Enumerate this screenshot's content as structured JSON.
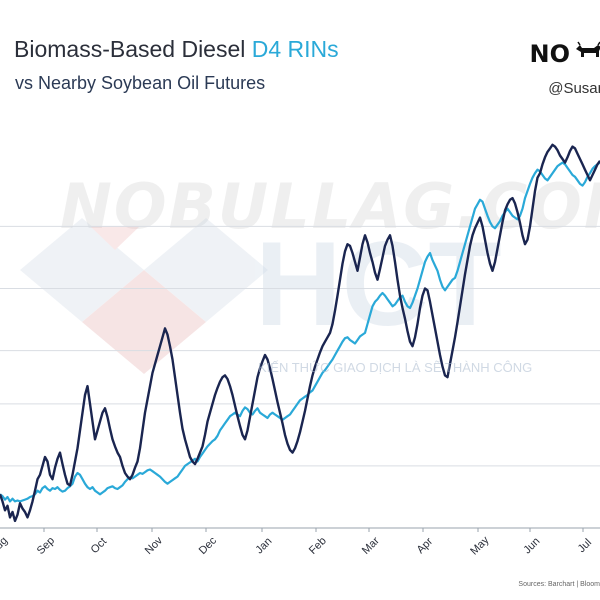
{
  "header": {
    "title_main": "Biomass-Based Diesel ",
    "title_accent": "D4 RINs",
    "subtitle": "vs Nearby Soybean Oil Futures"
  },
  "brand": {
    "logo_text": "NO",
    "handle": "@Susan"
  },
  "watermark": {
    "text": "NOBULLAG.COM",
    "logo_text": "HCT",
    "sub_text": "KIẾN THỨC GIAO DỊCH LÀ SẼ THÀNH CÔNG"
  },
  "source_text": "Sources: Barchart | Bloom",
  "colors": {
    "rins": "#2aa9d8",
    "soyoil": "#1a2550",
    "accent": "#2aa9d8",
    "grid": "#d9dde3"
  },
  "chart_data": {
    "type": "line",
    "title": "Biomass-Based Diesel D4 RINs",
    "subtitle": "vs Nearby Soybean Oil Futures",
    "x_ticks": [
      "Aug",
      "Sep",
      "Oct",
      "Nov",
      "Dec",
      "Jan",
      "Feb",
      "Mar",
      "Apr",
      "May",
      "Jun",
      "Jul"
    ],
    "grid": true,
    "series": [
      {
        "name": "D4 RINs",
        "color": "#2aa9d8",
        "values": [
          38,
          36,
          32,
          35,
          30,
          33,
          30,
          31,
          30,
          31,
          32,
          33,
          35,
          36,
          38,
          42,
          40,
          45,
          47,
          44,
          42,
          45,
          44,
          46,
          43,
          41,
          42,
          45,
          47,
          50,
          58,
          62,
          60,
          55,
          50,
          46,
          44,
          46,
          42,
          40,
          38,
          40,
          42,
          45,
          46,
          47,
          45,
          44,
          46,
          48,
          52,
          55,
          57,
          56,
          58,
          60,
          62,
          61,
          63,
          65,
          66,
          64,
          62,
          60,
          58,
          55,
          52,
          50,
          52,
          54,
          56,
          58,
          62,
          66,
          70,
          72,
          74,
          76,
          78,
          75,
          80,
          84,
          88,
          92,
          95,
          98,
          100,
          104,
          110,
          114,
          118,
          122,
          126,
          128,
          130,
          128,
          126,
          132,
          136,
          134,
          130,
          128,
          132,
          135,
          130,
          128,
          126,
          124,
          128,
          130,
          128,
          126,
          124,
          122,
          124,
          126,
          128,
          132,
          136,
          140,
          144,
          146,
          148,
          150,
          153,
          155,
          160,
          165,
          170,
          175,
          178,
          182,
          186,
          190,
          195,
          200,
          205,
          210,
          214,
          215,
          212,
          210,
          208,
          212,
          216,
          218,
          220,
          230,
          240,
          250,
          255,
          258,
          262,
          265,
          262,
          258,
          254,
          250,
          252,
          256,
          260,
          262,
          255,
          250,
          248,
          254,
          262,
          270,
          280,
          290,
          300,
          306,
          310,
          302,
          296,
          290,
          280,
          272,
          268,
          272,
          276,
          280,
          282,
          290,
          300,
          310,
          320,
          330,
          340,
          350,
          360,
          365,
          370,
          368,
          360,
          352,
          345,
          340,
          338,
          342,
          346,
          352,
          356,
          360,
          356,
          352,
          350,
          348,
          352,
          360,
          372,
          380,
          388,
          395,
          400,
          404,
          402,
          398,
          394,
          392,
          396,
          400,
          404,
          408,
          410,
          412,
          410,
          406,
          402,
          398,
          396,
          392,
          388,
          386,
          390,
          396,
          400,
          405,
          408,
          410,
          412
        ]
      },
      {
        "name": "Soybean Oil Futures",
        "color": "#1a2550",
        "values": [
          38,
          30,
          20,
          25,
          12,
          18,
          8,
          15,
          28,
          22,
          18,
          12,
          20,
          30,
          42,
          55,
          60,
          70,
          80,
          75,
          60,
          55,
          68,
          78,
          85,
          72,
          60,
          50,
          48,
          60,
          75,
          90,
          110,
          130,
          150,
          160,
          140,
          120,
          100,
          110,
          120,
          130,
          135,
          125,
          112,
          100,
          92,
          85,
          80,
          70,
          62,
          58,
          55,
          60,
          68,
          75,
          90,
          110,
          130,
          145,
          160,
          175,
          185,
          195,
          205,
          215,
          225,
          218,
          205,
          190,
          170,
          150,
          130,
          112,
          100,
          90,
          80,
          75,
          72,
          78,
          85,
          92,
          105,
          120,
          130,
          140,
          150,
          158,
          165,
          170,
          172,
          168,
          160,
          150,
          138,
          126,
          115,
          105,
          100,
          110,
          125,
          140,
          155,
          170,
          180,
          188,
          195,
          190,
          180,
          168,
          155,
          142,
          130,
          118,
          105,
          95,
          88,
          85,
          90,
          98,
          108,
          120,
          132,
          146,
          160,
          172,
          182,
          190,
          198,
          205,
          210,
          215,
          220,
          230,
          245,
          262,
          280,
          298,
          312,
          320,
          318,
          310,
          300,
          290,
          305,
          320,
          330,
          322,
          310,
          300,
          288,
          280,
          292,
          305,
          318,
          325,
          330,
          318,
          300,
          280,
          262,
          248,
          236,
          222,
          210,
          205,
          215,
          230,
          248,
          262,
          270,
          268,
          255,
          240,
          225,
          210,
          195,
          182,
          172,
          170,
          185,
          200,
          215,
          232,
          250,
          268,
          286,
          302,
          318,
          330,
          338,
          344,
          350,
          340,
          325,
          310,
          298,
          290,
          300,
          315,
          330,
          345,
          358,
          365,
          370,
          372,
          366,
          356,
          344,
          330,
          320,
          325,
          340,
          360,
          380,
          395,
          400,
          410,
          418,
          424,
          428,
          432,
          430,
          426,
          420,
          416,
          412,
          418,
          425,
          430,
          428,
          422,
          416,
          410,
          404,
          398,
          392,
          398,
          404,
          410,
          414
        ]
      }
    ]
  }
}
